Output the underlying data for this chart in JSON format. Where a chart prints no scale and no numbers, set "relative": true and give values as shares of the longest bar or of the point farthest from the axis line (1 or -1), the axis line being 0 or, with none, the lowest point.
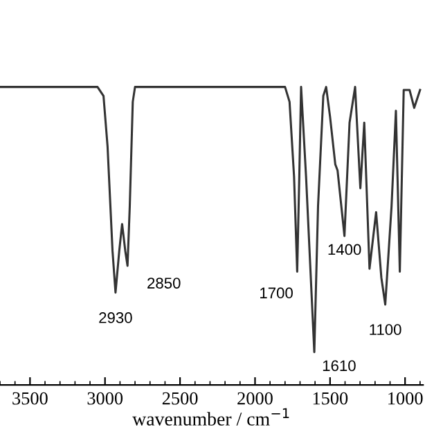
{
  "chart_data": {
    "type": "line",
    "relative": true,
    "xlabel": "wavenumber / cm$^{−1}$",
    "x": [
      3700,
      3050,
      3010,
      2983,
      2950,
      2930,
      2905,
      2886,
      2865,
      2850,
      2835,
      2815,
      2800,
      1800,
      1770,
      1740,
      1719,
      1705,
      1693,
      1660,
      1605,
      1580,
      1545,
      1526,
      1500,
      1465,
      1450,
      1404,
      1370,
      1333,
      1298,
      1272,
      1237,
      1193,
      1158,
      1132,
      1090,
      1061,
      1035,
      1009,
      970,
      939,
      900
    ],
    "series": [
      {
        "color": "#333333",
        "values": [
          1.0,
          1.0,
          0.97,
          0.8,
          0.45,
          0.31,
          0.45,
          0.54,
          0.45,
          0.4,
          0.6,
          0.95,
          1.0,
          1.0,
          0.95,
          0.7,
          0.38,
          0.7,
          1.0,
          0.7,
          0.11,
          0.6,
          0.97,
          1.0,
          0.9,
          0.74,
          0.72,
          0.5,
          0.88,
          1.0,
          0.66,
          0.88,
          0.39,
          0.58,
          0.36,
          0.27,
          0.6,
          0.92,
          0.38,
          0.99,
          0.99,
          0.93,
          0.99
        ]
      }
    ],
    "xlim": [
      3700,
      880
    ],
    "xticks": [
      3500,
      3000,
      2500,
      2000,
      1500,
      1000
    ],
    "annotations": [
      {
        "text": "2930",
        "x": 2930,
        "y": 0.31
      },
      {
        "text": "2850",
        "x": 2850,
        "y": 0.4
      },
      {
        "text": "1700",
        "x": 1719,
        "y": 0.38
      },
      {
        "text": "1610",
        "x": 1605,
        "y": 0.11
      },
      {
        "text": "1400",
        "x": 1404,
        "y": 0.5
      },
      {
        "text": "1100",
        "x": 1132,
        "y": 0.27
      }
    ],
    "grid": false,
    "legend": false
  }
}
